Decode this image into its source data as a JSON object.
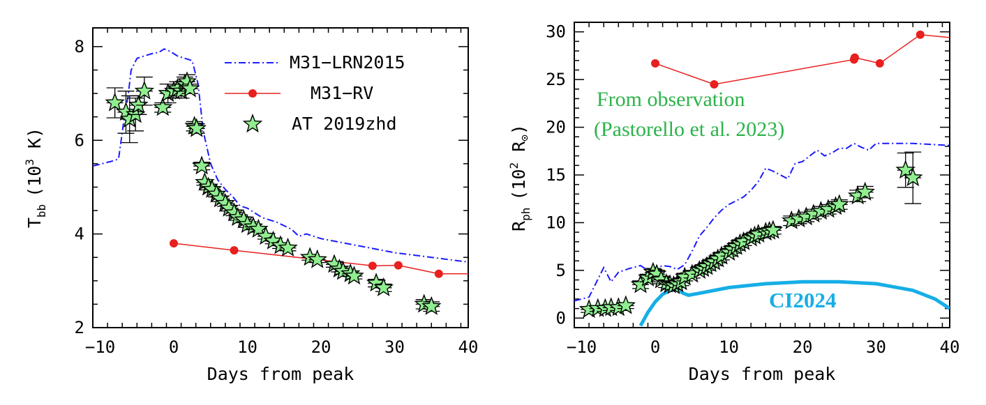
{
  "colors": {
    "lrn_line": "#1a1aff",
    "rv_line": "#e8201e",
    "star_fill": "#90ee90",
    "star_stroke": "#000000",
    "annotation_green": "#2bb34a",
    "ci_line": "#16aee6"
  },
  "chart_data": [
    {
      "type": "scatter",
      "xlabel": "Days from peak",
      "ylabel_main": "T",
      "ylabel_sub": "bb",
      "ylabel_rest": "(10",
      "ylabel_sup": "3",
      "ylabel_tail": " K)",
      "xlim": [
        -11,
        40
      ],
      "ylim": [
        2,
        8.4
      ],
      "xticks": [
        -10,
        0,
        10,
        20,
        30,
        40
      ],
      "xtick_labels": [
        "−10",
        "0",
        "10",
        "20",
        "30",
        "40"
      ],
      "yticks": [
        2,
        4,
        6,
        8
      ],
      "ytick_labels": [
        "2",
        "4",
        "6",
        "8"
      ],
      "grid": false,
      "legend": [
        {
          "label": "M31−LRN2015",
          "style": "dash-dot"
        },
        {
          "label": "M31−RV",
          "style": "line-marker"
        },
        {
          "label": "AT 2019zhd",
          "style": "star"
        }
      ],
      "legend_placement": "top-right",
      "series": [
        {
          "name": "M31−LRN2015",
          "style": "dash-dot",
          "x": [
            -11,
            -8.5,
            -7.5,
            -6.8,
            -6.2,
            -5.8,
            -5,
            -4,
            -3,
            -2,
            -1.3,
            -0.5,
            0.5,
            1.5,
            2.5,
            3.3,
            4,
            5,
            6,
            7,
            8,
            9,
            10,
            12,
            14,
            16,
            17,
            18,
            20,
            25,
            30,
            35,
            40
          ],
          "y": [
            5.45,
            5.55,
            5.6,
            6.4,
            6.95,
            7.5,
            7.75,
            7.8,
            7.85,
            7.88,
            7.95,
            7.9,
            7.8,
            7.75,
            7.7,
            7.2,
            6.2,
            5.5,
            5.15,
            4.95,
            4.8,
            4.6,
            4.55,
            4.35,
            4.25,
            4.1,
            3.95,
            4.0,
            3.9,
            3.75,
            3.6,
            3.5,
            3.4
          ]
        },
        {
          "name": "M31−RV",
          "style": "line-marker",
          "x": [
            0,
            8.2,
            27,
            30.5,
            36,
            40
          ],
          "y": [
            3.8,
            3.65,
            3.32,
            3.33,
            3.15,
            3.15
          ],
          "marker_x": [
            0,
            8.2,
            27,
            30.5,
            36
          ],
          "marker_y": [
            3.8,
            3.65,
            3.32,
            3.33,
            3.15
          ]
        },
        {
          "name": "AT 2019zhd",
          "style": "star",
          "x": [
            -8,
            -6.5,
            -6,
            -5.2,
            -4.8,
            -4,
            -1.5,
            -0.8,
            0,
            0.5,
            1,
            1.5,
            1.8,
            2.2,
            2.8,
            3.1,
            3.8,
            4.2,
            4.7,
            5.2,
            5.8,
            6.3,
            7,
            7.5,
            8.2,
            8.7,
            9.5,
            10,
            10.8,
            11.5,
            12.5,
            13.5,
            14.5,
            15.5,
            18.5,
            19.5,
            21.8,
            22.5,
            23,
            24,
            24.5,
            27.5,
            28.5,
            34,
            35
          ],
          "y": [
            6.8,
            6.6,
            6.45,
            6.55,
            6.75,
            7.05,
            6.7,
            7.0,
            7.05,
            7.1,
            7.05,
            7.2,
            7.25,
            7.1,
            6.3,
            6.25,
            5.45,
            5.1,
            5.0,
            4.95,
            4.85,
            4.75,
            4.65,
            4.55,
            4.45,
            4.35,
            4.3,
            4.2,
            4.15,
            4.1,
            3.95,
            3.85,
            3.75,
            3.7,
            3.5,
            3.45,
            3.35,
            3.25,
            3.2,
            3.15,
            3.1,
            2.95,
            2.85,
            2.5,
            2.45
          ],
          "errors": [
            0.32,
            0.45,
            0.5,
            0.35,
            0.2,
            0.3,
            0.1,
            0.2,
            0.15,
            0.15,
            0.15,
            0.15,
            0.15,
            0.1,
            0.1,
            0.1,
            0.08,
            0.06,
            0.06,
            0.06,
            0.06,
            0.06,
            0.06,
            0.06,
            0.06,
            0.06,
            0.06,
            0.06,
            0.06,
            0.06,
            0.06,
            0.06,
            0.06,
            0.06,
            0.06,
            0.06,
            0.06,
            0.06,
            0.06,
            0.06,
            0.06,
            0.08,
            0.08,
            0.1,
            0.1
          ]
        }
      ]
    },
    {
      "type": "scatter",
      "xlabel": "Days from peak",
      "ylabel_main": "R",
      "ylabel_sub": "ph",
      "ylabel_rest": "(10",
      "ylabel_sup": "2",
      "ylabel_tail": " R",
      "ylabel_symbol": "⊙",
      "xlim": [
        -11,
        40
      ],
      "ylim": [
        -1,
        31
      ],
      "xticks": [
        -10,
        0,
        10,
        20,
        30,
        40
      ],
      "xtick_labels": [
        "−10",
        "0",
        "10",
        "20",
        "30",
        "40"
      ],
      "yticks": [
        0,
        5,
        10,
        15,
        20,
        25,
        30
      ],
      "ytick_labels": [
        "0",
        "5",
        "10",
        "15",
        "20",
        "25",
        "30"
      ],
      "grid": false,
      "annotations": [
        {
          "text": "From observation",
          "color": "annotation_green"
        },
        {
          "text": "(Pastorello et al. 2023)",
          "color": "annotation_green"
        },
        {
          "text": "CI2024",
          "color": "ci_line"
        }
      ],
      "series": [
        {
          "name": "M31−RV",
          "style": "line-marker",
          "x": [
            0,
            8,
            27,
            27.1,
            30.5,
            36,
            40
          ],
          "y": [
            26.7,
            24.5,
            27.1,
            27.3,
            26.7,
            29.7,
            29.4
          ],
          "marker_x": [
            0,
            8,
            27,
            27.1,
            30.5,
            36
          ],
          "marker_y": [
            26.7,
            24.5,
            27.1,
            27.3,
            26.7,
            29.7
          ]
        },
        {
          "name": "M31−LRN2015",
          "style": "dash-dot",
          "x": [
            -11,
            -9,
            -7,
            -6,
            -5,
            -3.5,
            -2,
            -1,
            0,
            1,
            2,
            3,
            4,
            5,
            6,
            7,
            8,
            9,
            10,
            11,
            12,
            13,
            14,
            15,
            16,
            17,
            18,
            19,
            20,
            21,
            22,
            23,
            24,
            25,
            26,
            27,
            28,
            29,
            30,
            32,
            35,
            40
          ],
          "y": [
            1.8,
            2.2,
            5.3,
            3.8,
            4.8,
            5.2,
            5.5,
            5.0,
            5.2,
            5.5,
            5.4,
            5.1,
            5.6,
            7.0,
            8.6,
            9.5,
            10.5,
            11.3,
            11.9,
            12.3,
            12.7,
            13.4,
            14.3,
            15.7,
            15.4,
            15.0,
            14.6,
            16.2,
            16.4,
            17.0,
            17.6,
            17.0,
            17.3,
            17.8,
            17.8,
            18.3,
            17.9,
            17.6,
            18.3,
            18.3,
            18.3,
            18.1
          ]
        },
        {
          "name": "CI2024",
          "style": "solid-thick",
          "x": [
            -2,
            -1,
            0,
            1,
            2,
            3,
            3.8,
            4.5,
            6,
            10,
            15,
            20,
            25,
            30,
            35,
            38,
            40
          ],
          "y": [
            -0.8,
            0.6,
            1.7,
            2.5,
            2.9,
            3.0,
            2.6,
            2.4,
            2.6,
            3.2,
            3.6,
            3.8,
            3.8,
            3.6,
            2.9,
            2.0,
            1.0
          ]
        },
        {
          "name": "AT 2019zhd",
          "style": "star",
          "x": [
            -9,
            -7.8,
            -6.8,
            -6,
            -5,
            -4,
            -2,
            -1,
            -0.3,
            0.2,
            0.8,
            1.5,
            2,
            2.5,
            3,
            3.5,
            4,
            5,
            6,
            6.5,
            7,
            7.5,
            8,
            8.5,
            9,
            10,
            10.5,
            11,
            11.5,
            12,
            13,
            13.5,
            14,
            15,
            15.5,
            16,
            18.5,
            19.5,
            20.5,
            21.5,
            22.5,
            23.5,
            24.5,
            25,
            27.5,
            28.5,
            34,
            35
          ],
          "y": [
            0.9,
            1.0,
            1.0,
            1.1,
            1.1,
            1.3,
            3.5,
            4.2,
            4.8,
            4.6,
            4.0,
            3.6,
            3.5,
            3.4,
            3.6,
            3.8,
            4.3,
            4.6,
            5.0,
            5.2,
            5.4,
            5.7,
            5.9,
            6.2,
            6.5,
            6.9,
            7.2,
            7.5,
            7.8,
            8.0,
            8.4,
            8.6,
            8.8,
            9.0,
            9.1,
            9.2,
            10.2,
            10.4,
            10.6,
            10.9,
            11.2,
            11.4,
            11.7,
            11.9,
            12.8,
            13.2,
            15.5,
            14.7
          ],
          "errors": [
            0.3,
            0.3,
            0.3,
            0.3,
            0.3,
            0.3,
            0.4,
            0.4,
            0.4,
            0.4,
            0.4,
            0.4,
            0.4,
            0.4,
            0.4,
            0.4,
            0.4,
            0.4,
            0.4,
            0.4,
            0.4,
            0.4,
            0.4,
            0.4,
            0.4,
            0.4,
            0.4,
            0.4,
            0.4,
            0.4,
            0.4,
            0.4,
            0.4,
            0.4,
            0.4,
            0.4,
            0.5,
            0.5,
            0.5,
            0.5,
            0.5,
            0.5,
            0.5,
            0.5,
            0.6,
            0.6,
            1.8,
            2.7
          ]
        }
      ]
    }
  ]
}
